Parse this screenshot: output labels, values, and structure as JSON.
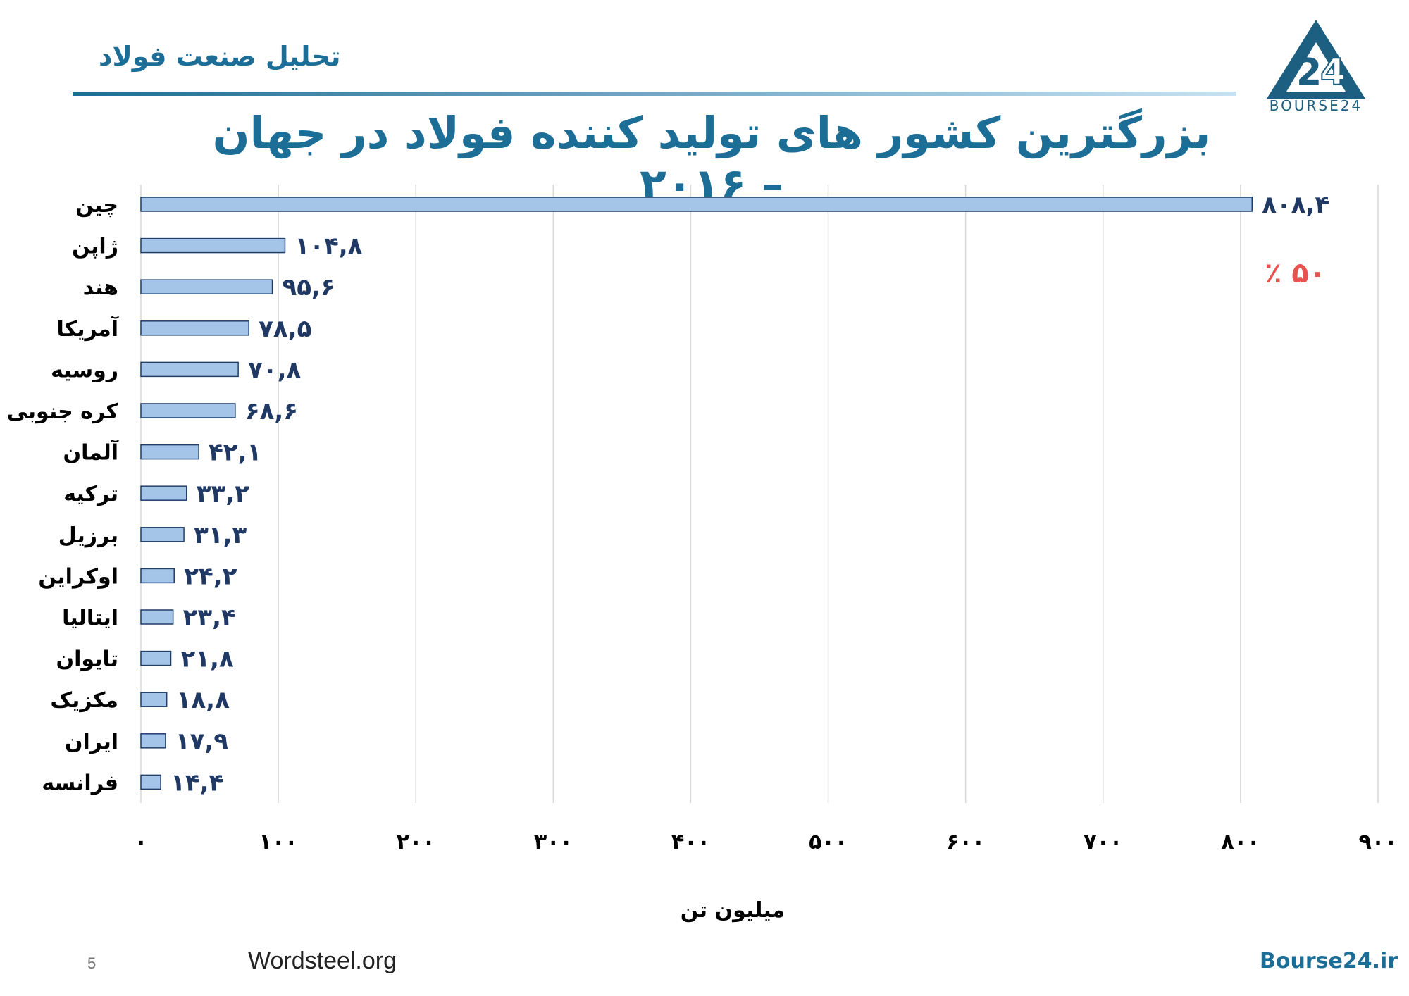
{
  "header": {
    "section_title": "تحلیل صنعت فولاد",
    "logo_text": "BOURSE24"
  },
  "colors": {
    "accent": "#1c6e97",
    "bar_fill": "#a4c5e8",
    "bar_stroke": "#1f3f6a",
    "highlight": "#e8524f"
  },
  "annotation": "٪ ۵۰",
  "footer": {
    "page_number": "5",
    "source": "Wordsteel.org",
    "site": "Bourse24.ir"
  },
  "chart_data": {
    "type": "bar",
    "orientation": "horizontal",
    "title": "بزرگترین کشور های تولید کننده فولاد در جهان – ۲۰۱۶",
    "xlabel": "میلیون تن",
    "ylabel": "",
    "xlim": [
      0,
      900
    ],
    "ticks": [
      0,
      100,
      200,
      300,
      400,
      500,
      600,
      700,
      800,
      900
    ],
    "tick_labels": [
      "۰",
      "۱۰۰",
      "۲۰۰",
      "۳۰۰",
      "۴۰۰",
      "۵۰۰",
      "۶۰۰",
      "۷۰۰",
      "۸۰۰",
      "۹۰۰"
    ],
    "grid": true,
    "categories": [
      "چین",
      "ژاپن",
      "هند",
      "آمریکا",
      "روسیه",
      "کره جنوبی",
      "آلمان",
      "ترکیه",
      "برزیل",
      "اوکراین",
      "ایتالیا",
      "تایوان",
      "مکزیک",
      "ایران",
      "فرانسه"
    ],
    "values": [
      808.4,
      104.8,
      95.6,
      78.5,
      70.8,
      68.6,
      42.1,
      33.2,
      31.3,
      24.2,
      23.4,
      21.8,
      18.8,
      17.9,
      14.4
    ],
    "value_labels": [
      "۸۰۸,۴",
      "۱۰۴,۸",
      "۹۵,۶",
      "۷۸,۵",
      "۷۰,۸",
      "۶۸,۶",
      "۴۲,۱",
      "۳۳,۲",
      "۳۱,۳",
      "۲۴,۲",
      "۲۳,۴",
      "۲۱,۸",
      "۱۸,۸",
      "۱۷,۹",
      "۱۴,۴"
    ]
  }
}
